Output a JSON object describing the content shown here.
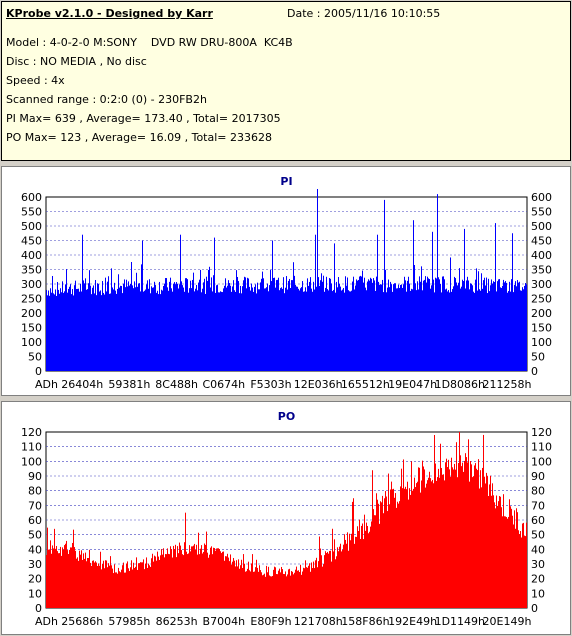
{
  "info": {
    "title": "KProbe v2.1.0 - Designed by Karr",
    "date": "Date : 2005/11/16 10:10:55",
    "lines": [
      "Model : 4-0-2-0 M:SONY    DVD RW DRU-800A  KC4B",
      "Disc : NO MEDIA , No disc",
      "Speed : 4x",
      "Scanned range : 0:2:0 (0) - 230FB2h",
      "PI Max= 639 , Average= 173.40 , Total= 2017305",
      "PO Max= 123 , Average= 16.09 , Total= 233628"
    ]
  },
  "chart_data": [
    {
      "type": "bar",
      "title": "PI",
      "color": "#0000ff",
      "ylim": [
        0,
        600
      ],
      "yticks": [
        0,
        50,
        100,
        150,
        200,
        250,
        300,
        350,
        400,
        450,
        500,
        550,
        600
      ],
      "xtick_labels": [
        "ADh",
        "26404h",
        "59381h",
        "8C488h",
        "C0674h",
        "F5303h",
        "12E036h",
        "165512h",
        "19E047h",
        "1D8086h",
        "211258h"
      ],
      "grid": true,
      "profile": [
        {
          "x": 0.0,
          "base": 280,
          "spread": 25
        },
        {
          "x": 0.1,
          "base": 290,
          "spread": 30
        },
        {
          "x": 0.3,
          "base": 295,
          "spread": 30
        },
        {
          "x": 0.6,
          "base": 300,
          "spread": 30
        },
        {
          "x": 0.85,
          "base": 300,
          "spread": 30
        },
        {
          "x": 1.0,
          "base": 290,
          "spread": 25
        }
      ],
      "spikes": [
        {
          "x": 0.075,
          "y": 470
        },
        {
          "x": 0.2,
          "y": 450
        },
        {
          "x": 0.28,
          "y": 470
        },
        {
          "x": 0.35,
          "y": 460
        },
        {
          "x": 0.47,
          "y": 450
        },
        {
          "x": 0.56,
          "y": 470
        },
        {
          "x": 0.565,
          "y": 630
        },
        {
          "x": 0.6,
          "y": 440
        },
        {
          "x": 0.69,
          "y": 470
        },
        {
          "x": 0.705,
          "y": 590
        },
        {
          "x": 0.765,
          "y": 520
        },
        {
          "x": 0.805,
          "y": 480
        },
        {
          "x": 0.815,
          "y": 610
        },
        {
          "x": 0.87,
          "y": 490
        },
        {
          "x": 0.935,
          "y": 510
        },
        {
          "x": 0.97,
          "y": 475
        }
      ]
    },
    {
      "type": "bar",
      "title": "PO",
      "color": "#ff0000",
      "ylim": [
        0,
        120
      ],
      "yticks": [
        0,
        10,
        20,
        30,
        40,
        50,
        60,
        70,
        80,
        90,
        100,
        110,
        120
      ],
      "xtick_labels": [
        "ADh",
        "25686h",
        "57985h",
        "86253h",
        "B7004h",
        "E80F9h",
        "121708h",
        "158F86h",
        "192E49h",
        "1D1149h",
        "20E149h"
      ],
      "grid": true,
      "profile": [
        {
          "x": 0.0,
          "base": 42,
          "spread": 6
        },
        {
          "x": 0.05,
          "base": 40,
          "spread": 6
        },
        {
          "x": 0.1,
          "base": 30,
          "spread": 4
        },
        {
          "x": 0.15,
          "base": 27,
          "spread": 4
        },
        {
          "x": 0.2,
          "base": 30,
          "spread": 4
        },
        {
          "x": 0.25,
          "base": 37,
          "spread": 5
        },
        {
          "x": 0.3,
          "base": 42,
          "spread": 5
        },
        {
          "x": 0.35,
          "base": 38,
          "spread": 5
        },
        {
          "x": 0.4,
          "base": 30,
          "spread": 4
        },
        {
          "x": 0.45,
          "base": 25,
          "spread": 4
        },
        {
          "x": 0.5,
          "base": 24,
          "spread": 4
        },
        {
          "x": 0.55,
          "base": 28,
          "spread": 4
        },
        {
          "x": 0.6,
          "base": 38,
          "spread": 6
        },
        {
          "x": 0.65,
          "base": 52,
          "spread": 8
        },
        {
          "x": 0.7,
          "base": 68,
          "spread": 10
        },
        {
          "x": 0.75,
          "base": 82,
          "spread": 10
        },
        {
          "x": 0.8,
          "base": 92,
          "spread": 10
        },
        {
          "x": 0.85,
          "base": 100,
          "spread": 10
        },
        {
          "x": 0.9,
          "base": 92,
          "spread": 10
        },
        {
          "x": 0.95,
          "base": 70,
          "spread": 10
        },
        {
          "x": 1.0,
          "base": 52,
          "spread": 8
        }
      ],
      "spikes": [
        {
          "x": 0.29,
          "y": 65
        },
        {
          "x": 0.74,
          "y": 95
        },
        {
          "x": 0.76,
          "y": 100
        },
        {
          "x": 0.82,
          "y": 112
        },
        {
          "x": 0.86,
          "y": 120
        },
        {
          "x": 0.88,
          "y": 115
        },
        {
          "x": 0.91,
          "y": 118
        },
        {
          "x": 0.93,
          "y": 85
        },
        {
          "x": 0.98,
          "y": 68
        }
      ]
    }
  ]
}
